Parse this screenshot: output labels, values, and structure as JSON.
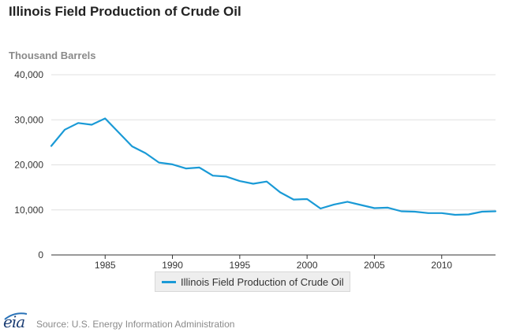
{
  "title": "Illinois Field Production of Crude Oil",
  "units_label": "Thousand Barrels",
  "legend_label": "Illinois Field Production of Crude Oil",
  "logo_text": "eia",
  "source": "Source: U.S. Energy Information Administration",
  "colors": {
    "series": "#1a9ad6",
    "grid": "#e0e0e0",
    "axis": "#333333"
  },
  "chart_data": {
    "type": "line",
    "title": "Illinois Field Production of Crude Oil",
    "ylabel": "Thousand Barrels",
    "xlabel": "",
    "xlim": [
      1981,
      2014
    ],
    "ylim": [
      0,
      40000
    ],
    "x_ticks": [
      1985,
      1990,
      1995,
      2000,
      2005,
      2010
    ],
    "y_ticks": [
      0,
      10000,
      20000,
      30000,
      40000
    ],
    "y_tick_labels": [
      "0",
      "10,000",
      "20,000",
      "30,000",
      "40,000"
    ],
    "grid": "horizontal",
    "legend_position": "bottom",
    "series": [
      {
        "name": "Illinois Field Production of Crude Oil",
        "x": [
          1981,
          1982,
          1983,
          1984,
          1985,
          1986,
          1987,
          1988,
          1989,
          1990,
          1991,
          1992,
          1993,
          1994,
          1995,
          1996,
          1997,
          1998,
          1999,
          2000,
          2001,
          2002,
          2003,
          2004,
          2005,
          2006,
          2007,
          2008,
          2009,
          2010,
          2011,
          2012,
          2013,
          2014
        ],
        "values": [
          24200,
          27800,
          29300,
          28900,
          30300,
          27200,
          24100,
          22600,
          20500,
          20100,
          19200,
          19400,
          17600,
          17400,
          16400,
          15800,
          16300,
          13900,
          12300,
          12400,
          10300,
          11200,
          11800,
          11100,
          10400,
          10500,
          9700,
          9600,
          9300,
          9300,
          8900,
          9000,
          9600,
          9700
        ]
      }
    ]
  }
}
